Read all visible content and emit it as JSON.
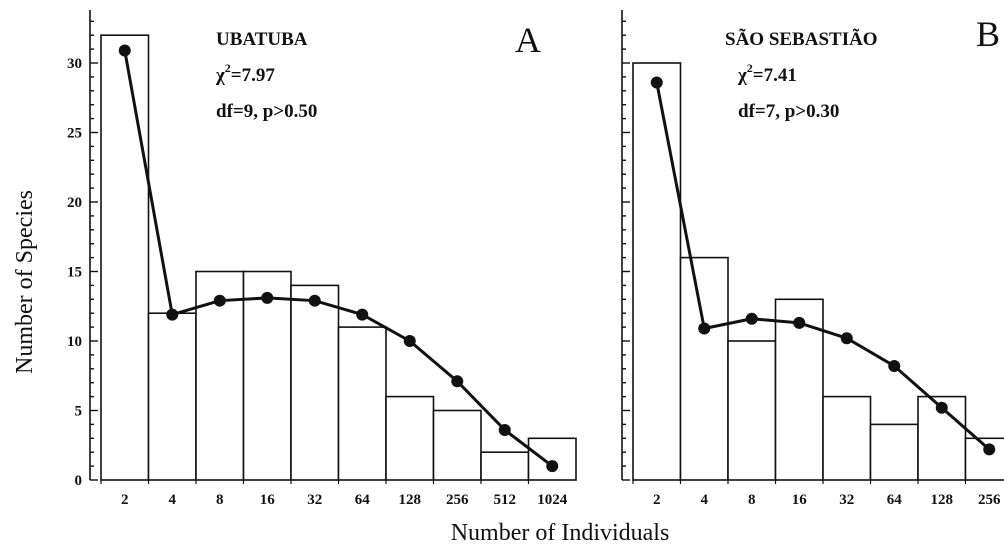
{
  "ylabel": "Number of Species",
  "xlabel": "Number of Individuals",
  "chart_data": [
    {
      "type": "bar",
      "panel_letter": "A",
      "site": "UBATUBA",
      "chi_prefix": "χ",
      "chi_exp": "2",
      "chi_value": "=7.97",
      "df_text": "df=9, p>0.50",
      "categories": [
        "2",
        "4",
        "8",
        "16",
        "32",
        "64",
        "128",
        "256",
        "512",
        "1024"
      ],
      "series": [
        {
          "type": "bar",
          "values": [
            32,
            12,
            15,
            15,
            14,
            11,
            6,
            5,
            2,
            3
          ]
        },
        {
          "type": "line",
          "values": [
            30.9,
            11.9,
            12.9,
            13.1,
            12.9,
            11.9,
            10.0,
            7.1,
            3.6,
            1.0
          ]
        }
      ],
      "ylim": [
        0,
        33
      ],
      "yticks": [
        "0",
        "5",
        "10",
        "15",
        "20",
        "25",
        "30"
      ],
      "grid": false
    },
    {
      "type": "bar",
      "panel_letter": "B",
      "site": "SÃO SEBASTIÃO",
      "chi_prefix": "χ",
      "chi_exp": "2",
      "chi_value": "=7.41",
      "df_text": "df=7, p>0.30",
      "categories": [
        "2",
        "4",
        "8",
        "16",
        "32",
        "64",
        "128",
        "256"
      ],
      "series": [
        {
          "type": "bar",
          "values": [
            30,
            16,
            10,
            13,
            6,
            4,
            6,
            3
          ]
        },
        {
          "type": "line",
          "values": [
            28.6,
            10.9,
            11.6,
            11.3,
            10.2,
            8.2,
            5.2,
            2.2
          ]
        }
      ],
      "ylim": [
        0,
        33
      ],
      "grid": false
    }
  ]
}
